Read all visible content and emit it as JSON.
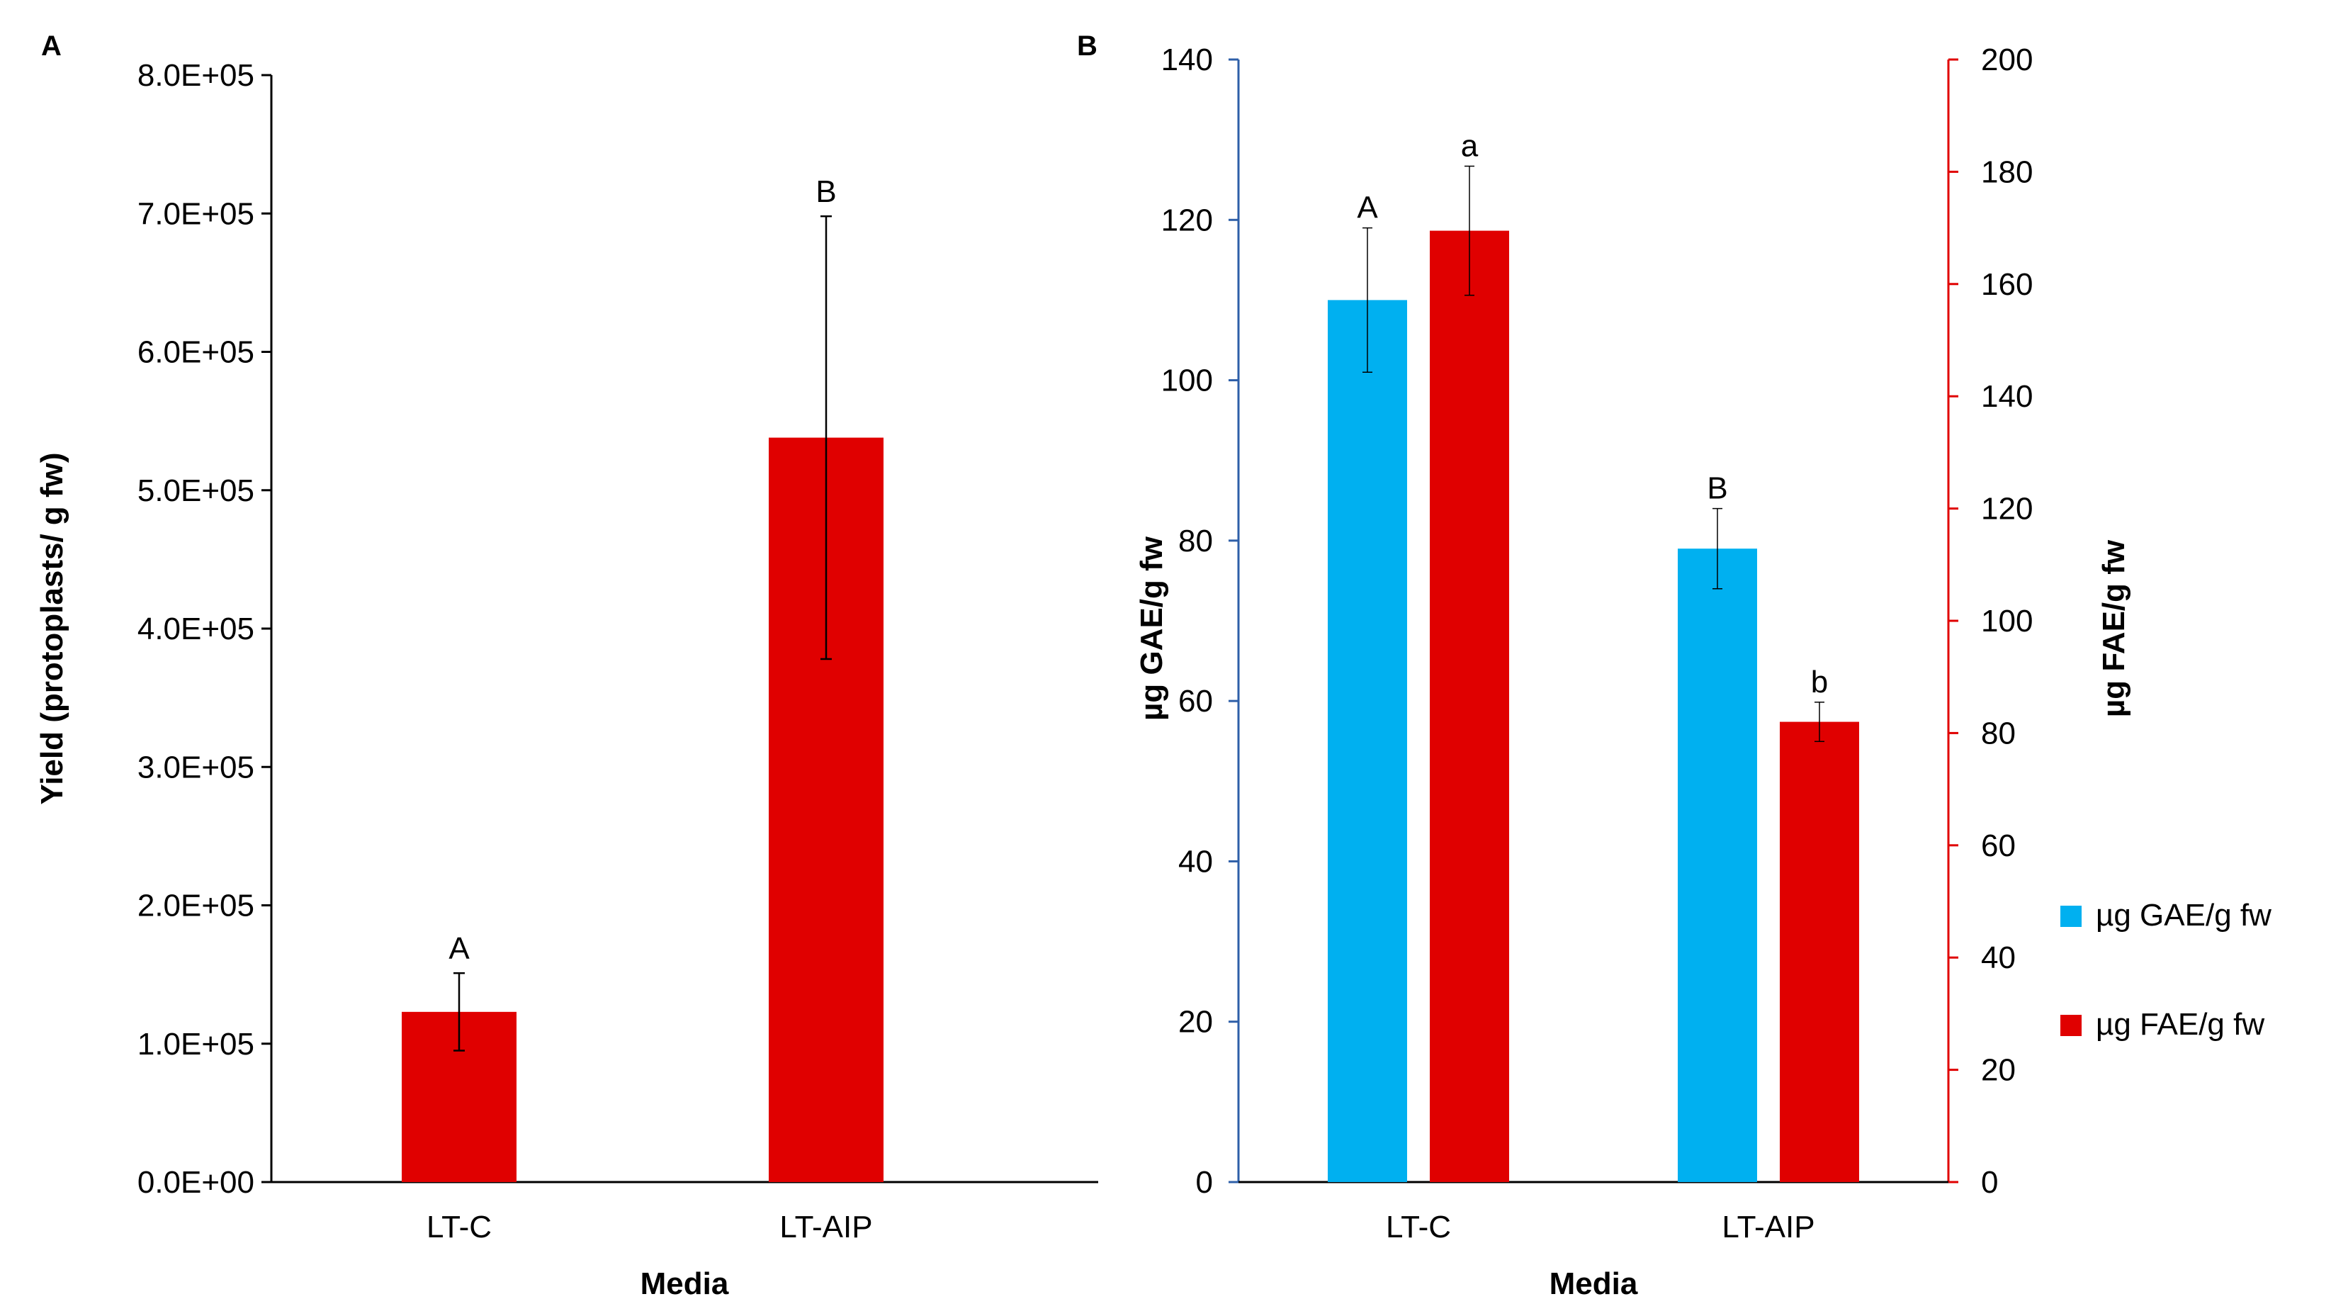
{
  "colors": {
    "red_bar": "#e00000",
    "blue_bar": "#00b0f0",
    "left_axis_b": "#2e5fa8",
    "right_axis_b": "#e00000",
    "axis_a": "#000000"
  },
  "chart_data": [
    {
      "panel": "A",
      "type": "bar",
      "panel_label": "A",
      "title": "",
      "xlabel": "Media",
      "ylabel": "Yield (protoplasts/ g fw)",
      "categories": [
        "LT-C",
        "LT-AIP"
      ],
      "ylim": [
        0,
        800000
      ],
      "yticks": [
        0,
        100000,
        200000,
        300000,
        400000,
        500000,
        600000,
        700000,
        800000
      ],
      "ytick_labels": [
        "0.0E+00",
        "1.0E+05",
        "2.0E+05",
        "3.0E+05",
        "4.0E+05",
        "5.0E+05",
        "6.0E+05",
        "7.0E+05",
        "8.0E+05"
      ],
      "series": [
        {
          "name": "Yield",
          "values": [
            123000,
            538000
          ],
          "errors": [
            28000,
            160000
          ],
          "annotations": [
            "A",
            "B"
          ]
        }
      ],
      "grid": false,
      "legend": "none"
    },
    {
      "panel": "B",
      "type": "bar",
      "panel_label": "B",
      "title": "",
      "xlabel": "Media",
      "ylabel": "µg GAE/g fw",
      "y2label": "µg FAE/g fw",
      "categories": [
        "LT-C",
        "LT-AIP"
      ],
      "ylim": [
        0,
        140
      ],
      "yticks": [
        0,
        20,
        40,
        60,
        80,
        100,
        120,
        140
      ],
      "ytick_labels": [
        "0",
        "20",
        "40",
        "60",
        "80",
        "100",
        "120",
        "140"
      ],
      "y2lim": [
        0,
        200
      ],
      "y2ticks": [
        0,
        20,
        40,
        60,
        80,
        100,
        120,
        140,
        160,
        180,
        200
      ],
      "y2tick_labels": [
        "0",
        "20",
        "40",
        "60",
        "80",
        "100",
        "120",
        "140",
        "160",
        "180",
        "200"
      ],
      "series": [
        {
          "name": "µg GAE/g fw",
          "axis": "left",
          "values": [
            110,
            79
          ],
          "errors": [
            9,
            5
          ],
          "annotations": [
            "A",
            "B"
          ]
        },
        {
          "name": "µg FAE/g fw",
          "axis": "right",
          "values": [
            169.5,
            82
          ],
          "errors": [
            11.5,
            3.5
          ],
          "annotations": [
            "a",
            "b"
          ]
        }
      ],
      "grid": false,
      "legend": "right"
    }
  ]
}
